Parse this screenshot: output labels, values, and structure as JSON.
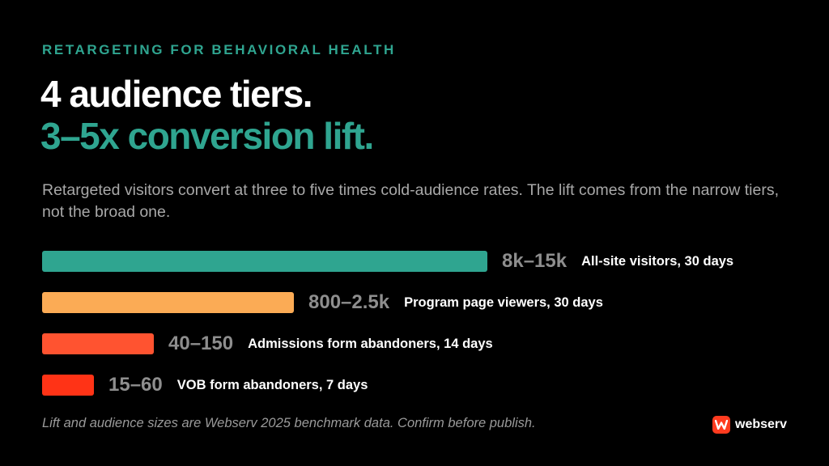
{
  "eyebrow": "RETARGETING FOR BEHAVIORAL HEALTH",
  "headline": {
    "line1": "4 audience tiers.",
    "line2": "3–5x conversion lift."
  },
  "subtitle": "Retargeted visitors convert at three to five times cold-audience rates. The lift comes from the narrow tiers, not the broad one.",
  "footnote": "Lift and audience sizes are Webserv 2025 benchmark data. Confirm before publish.",
  "brand": {
    "name": "webserv",
    "logo_icon": "w-logo-icon",
    "color": "#ff3b1f"
  },
  "colors": {
    "accent": "#2fa590",
    "tier1": "#2fa590",
    "tier2": "#fbab55",
    "tier3": "#ff5330",
    "tier4": "#ff3316"
  },
  "chart_data": {
    "type": "bar",
    "orientation": "horizontal",
    "title": "",
    "xlabel": "",
    "ylabel": "",
    "grid": false,
    "bars": [
      {
        "value_label": "8k–15k",
        "label": "All-site visitors, 30 days",
        "relative_length": 1.0,
        "color": "#2fa590"
      },
      {
        "value_label": "800–2.5k",
        "label": "Program page viewers, 30 days",
        "relative_length": 0.565,
        "color": "#fbab55"
      },
      {
        "value_label": "40–150",
        "label": "Admissions form abandoners, 14 days",
        "relative_length": 0.25,
        "color": "#ff5330"
      },
      {
        "value_label": "15–60",
        "label": "VOB form abandoners, 7 days",
        "relative_length": 0.117,
        "color": "#ff3316"
      }
    ]
  }
}
